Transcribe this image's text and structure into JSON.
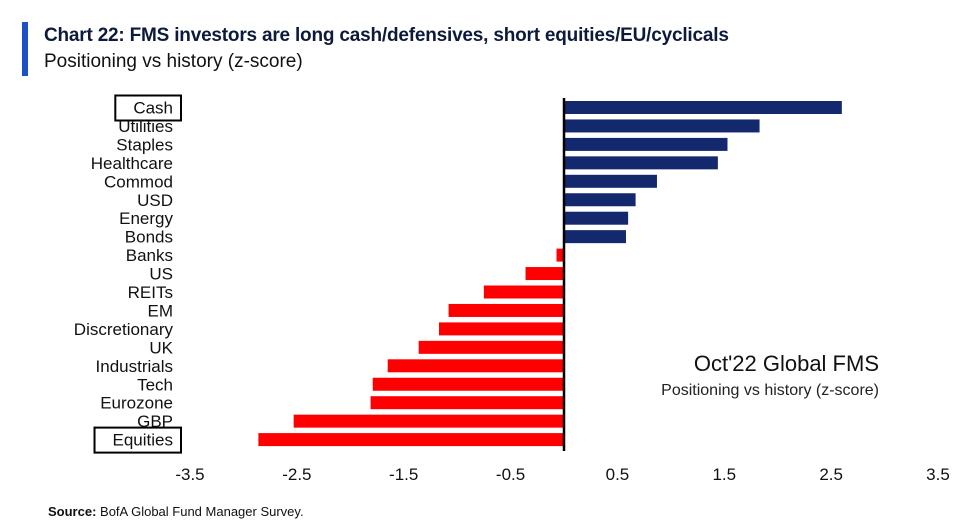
{
  "header": {
    "title": "Chart 22: FMS investors are long cash/defensives, short equities/EU/cyclicals",
    "subtitle": "Positioning vs history (z-score)"
  },
  "annotation": {
    "title": "Oct'22 Global FMS",
    "subtitle": "Positioning vs history (z-score)"
  },
  "source": {
    "label": "Source:",
    "text": " BofA Global Fund Manager Survey."
  },
  "colors": {
    "positive": "#14286e",
    "negative": "#ff0000",
    "axis": "#000000",
    "accent": "#1f4fc7"
  },
  "chart_data": {
    "type": "bar",
    "orientation": "horizontal",
    "categories": [
      "Cash",
      "Utilities",
      "Staples",
      "Healthcare",
      "Commod",
      "USD",
      "Energy",
      "Bonds",
      "Banks",
      "US",
      "REITs",
      "EM",
      "Discretionary",
      "UK",
      "Industrials",
      "Tech",
      "Eurozone",
      "GBP",
      "Equities"
    ],
    "values": [
      2.6,
      1.83,
      1.53,
      1.44,
      0.87,
      0.67,
      0.6,
      0.58,
      -0.07,
      -0.36,
      -0.75,
      -1.08,
      -1.17,
      -1.36,
      -1.65,
      -1.79,
      -1.81,
      -2.53,
      -2.86
    ],
    "xticks": [
      "-3.5",
      "-2.5",
      "-1.5",
      "-0.5",
      "0.5",
      "1.5",
      "2.5",
      "3.5"
    ],
    "xlim": [
      -3.5,
      3.5
    ],
    "xlabel": "",
    "ylabel": "",
    "boxed_categories": [
      "Cash",
      "Equities"
    ],
    "grid": false,
    "legend": "none"
  }
}
